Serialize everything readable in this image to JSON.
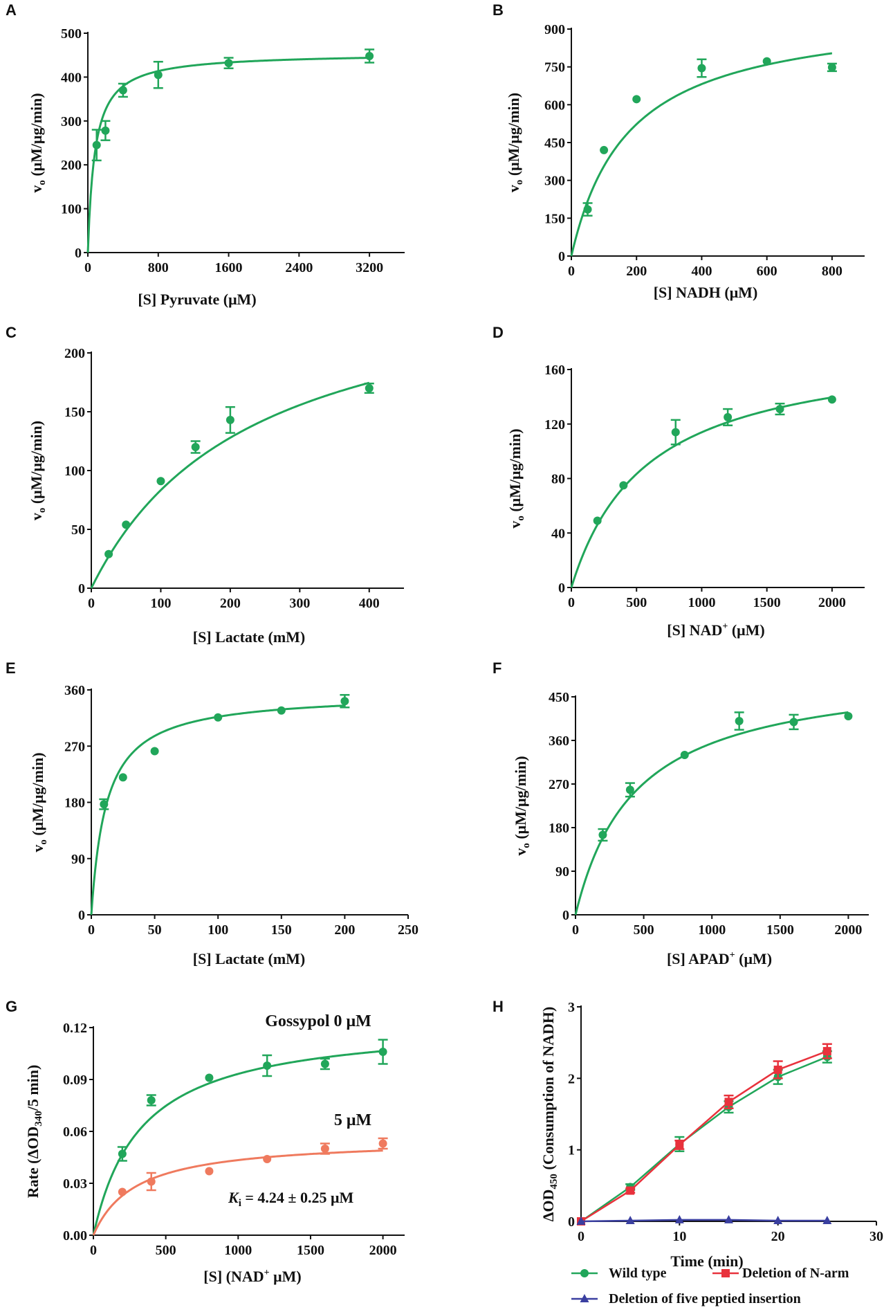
{
  "colors": {
    "green": "#21a65a",
    "salmon": "#ef7a5e",
    "red": "#e8323c",
    "blue": "#3a3fa0",
    "axis": "#111111"
  },
  "chart_data": [
    {
      "panel": "A",
      "type": "scatter",
      "fit": "michaelis-menten",
      "xlabel": "[S] Pyruvate (μM)",
      "ylabel": "vo (μM/μg/min)",
      "xlim": [
        0,
        3600
      ],
      "ylim": [
        0,
        500
      ],
      "xticks": [
        0,
        800,
        1600,
        2400,
        3200
      ],
      "yticks": [
        0,
        100,
        200,
        300,
        400,
        500
      ],
      "series": [
        {
          "name": "data",
          "color": "green",
          "x": [
            100,
            200,
            400,
            800,
            1600,
            3200
          ],
          "y": [
            245,
            278,
            370,
            405,
            432,
            448
          ],
          "err": [
            35,
            22,
            15,
            30,
            12,
            15
          ],
          "vmax": 455,
          "km": 80
        }
      ]
    },
    {
      "panel": "B",
      "type": "scatter",
      "fit": "michaelis-menten",
      "xlabel": "[S] NADH (μM)",
      "ylabel": "vo (μM/μg/min)",
      "xlim": [
        0,
        900
      ],
      "ylim": [
        0,
        900
      ],
      "xticks": [
        0,
        200,
        400,
        600,
        800
      ],
      "yticks": [
        0,
        150,
        300,
        450,
        600,
        750,
        900
      ],
      "series": [
        {
          "name": "data",
          "color": "green",
          "x": [
            50,
            100,
            200,
            400,
            600,
            800
          ],
          "y": [
            185,
            420,
            622,
            745,
            772,
            748
          ],
          "err": [
            25,
            0,
            0,
            35,
            0,
            15
          ],
          "vmax": 980,
          "km": 175
        }
      ]
    },
    {
      "panel": "C",
      "type": "scatter",
      "fit": "michaelis-menten",
      "xlabel": "[S] Lactate (mM)",
      "ylabel": "vo (μM/μg/min)",
      "xlim": [
        0,
        450
      ],
      "ylim": [
        0,
        200
      ],
      "xticks": [
        0,
        100,
        200,
        300,
        400
      ],
      "yticks": [
        0,
        50,
        100,
        150,
        200
      ],
      "series": [
        {
          "name": "data",
          "color": "green",
          "x": [
            25,
            50,
            100,
            150,
            200,
            400
          ],
          "y": [
            29,
            54,
            91,
            120,
            143,
            170
          ],
          "err": [
            0,
            0,
            0,
            5,
            11,
            4
          ],
          "vmax": 275,
          "km": 230
        }
      ]
    },
    {
      "panel": "D",
      "type": "scatter",
      "fit": "michaelis-menten",
      "xlabel": "[S] NAD⁺ (μM)",
      "ylabel": "vo (μM/μg/min)",
      "xlim": [
        0,
        2250
      ],
      "ylim": [
        0,
        160
      ],
      "xticks": [
        0,
        500,
        1000,
        1500,
        2000
      ],
      "yticks": [
        0,
        40,
        80,
        120,
        160
      ],
      "series": [
        {
          "name": "data",
          "color": "green",
          "x": [
            200,
            400,
            800,
            1200,
            1600,
            2000
          ],
          "y": [
            49,
            75,
            114,
            125,
            131,
            138
          ],
          "err": [
            0,
            0,
            9,
            6,
            4,
            0
          ],
          "vmax": 180,
          "km": 580
        }
      ]
    },
    {
      "panel": "E",
      "type": "scatter",
      "fit": "michaelis-menten",
      "xlabel": "[S] Lactate (mM)",
      "ylabel": "vo (μM/μg/min)",
      "xlim": [
        0,
        250
      ],
      "ylim": [
        0,
        360
      ],
      "xticks": [
        0,
        50,
        100,
        150,
        200,
        250
      ],
      "yticks": [
        0,
        90,
        180,
        270,
        360
      ],
      "series": [
        {
          "name": "data",
          "color": "green",
          "x": [
            10,
            25,
            50,
            100,
            150,
            200
          ],
          "y": [
            177,
            220,
            262,
            316,
            327,
            342
          ],
          "err": [
            8,
            0,
            0,
            0,
            0,
            10
          ],
          "vmax": 355,
          "km": 12
        }
      ]
    },
    {
      "panel": "F",
      "type": "scatter",
      "fit": "michaelis-menten",
      "xlabel": "[S] APAD⁺ (μM)",
      "ylabel": "vo (μM/μg/min)",
      "xlim": [
        0,
        2150
      ],
      "ylim": [
        0,
        450
      ],
      "xticks": [
        0,
        500,
        1000,
        1500,
        2000
      ],
      "yticks": [
        0,
        90,
        180,
        270,
        360,
        450
      ],
      "series": [
        {
          "name": "data",
          "color": "green",
          "x": [
            200,
            400,
            800,
            1200,
            1600,
            2000
          ],
          "y": [
            165,
            258,
            330,
            400,
            398,
            410
          ],
          "err": [
            12,
            14,
            0,
            18,
            15,
            0
          ],
          "vmax": 510,
          "km": 440
        }
      ]
    },
    {
      "panel": "G",
      "type": "scatter",
      "fit": "michaelis-menten",
      "xlabel": "[S] (NAD⁺ μM)",
      "ylabel": "Rate (ΔOD340/5 min)",
      "xlim": [
        0,
        2150
      ],
      "ylim": [
        0,
        0.12
      ],
      "xticks": [
        0,
        500,
        1000,
        1500,
        2000
      ],
      "yticks": [
        0.0,
        0.03,
        0.06,
        0.09,
        0.12
      ],
      "ytick_labels": [
        "0.00",
        "0.03",
        "0.06",
        "0.09",
        "0.12"
      ],
      "annotations": [
        "Gossypol 0 μM",
        "5 μM",
        "K",
        "i",
        " = 4.24 ±  0.25 μM"
      ],
      "series": [
        {
          "name": "Gossypol 0 μM",
          "color": "green",
          "x": [
            200,
            400,
            800,
            1200,
            1600,
            2000
          ],
          "y": [
            0.047,
            0.078,
            0.091,
            0.098,
            0.099,
            0.106
          ],
          "err": [
            0.004,
            0.003,
            0,
            0.006,
            0.003,
            0.007
          ],
          "vmax": 0.124,
          "km": 330
        },
        {
          "name": "5 μM",
          "color": "salmon",
          "x": [
            200,
            400,
            800,
            1200,
            1600,
            2000
          ],
          "y": [
            0.025,
            0.031,
            0.037,
            0.044,
            0.05,
            0.053
          ],
          "err": [
            0,
            0.005,
            0,
            0,
            0.003,
            0.003
          ],
          "vmax": 0.056,
          "km": 290
        }
      ]
    },
    {
      "panel": "H",
      "type": "line",
      "xlabel": "Time (min)",
      "ylabel": "ΔOD450 (Consumption of NADH)",
      "xlim": [
        0,
        30
      ],
      "ylim": [
        0,
        3
      ],
      "xticks": [
        0,
        10,
        20,
        30
      ],
      "yticks": [
        0,
        1,
        2,
        3
      ],
      "legend": [
        "Wild type",
        "Deletion of N-arm",
        "Deletion of five peptied insertion"
      ],
      "series": [
        {
          "name": "Wild type",
          "color": "green",
          "marker": "circle",
          "x": [
            0,
            5,
            10,
            15,
            20,
            25
          ],
          "y": [
            0,
            0.48,
            1.08,
            1.6,
            2.02,
            2.3
          ],
          "err": [
            0,
            0.04,
            0.1,
            0.08,
            0.1,
            0.08
          ]
        },
        {
          "name": "Deletion of N-arm",
          "color": "red",
          "marker": "square",
          "x": [
            0,
            5,
            10,
            15,
            20,
            25
          ],
          "y": [
            0,
            0.43,
            1.07,
            1.67,
            2.12,
            2.38
          ],
          "err": [
            0,
            0.03,
            0.06,
            0.09,
            0.12,
            0.1
          ]
        },
        {
          "name": "Deletion of five peptied insertion",
          "color": "blue",
          "marker": "triangle",
          "x": [
            0,
            5,
            10,
            15,
            20,
            25
          ],
          "y": [
            0,
            0.01,
            0.02,
            0.02,
            0.01,
            0.01
          ],
          "err": [
            0,
            0,
            0,
            0,
            0,
            0
          ]
        }
      ]
    }
  ]
}
